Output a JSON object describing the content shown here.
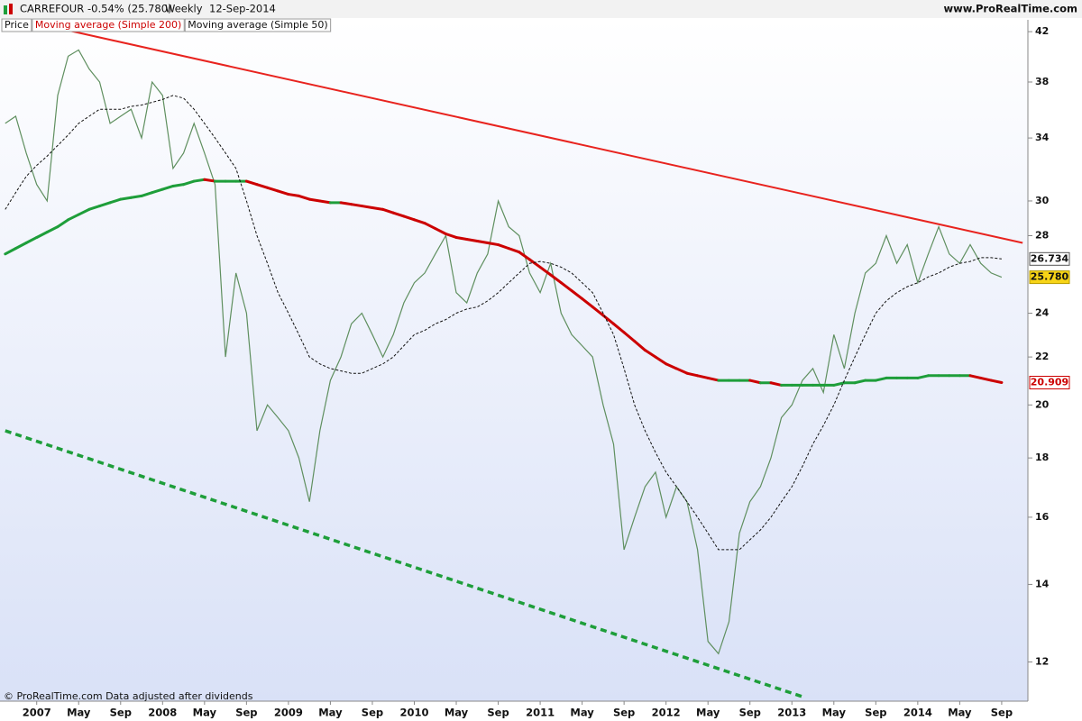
{
  "header": {
    "symbol": "CARREFOUR",
    "change": "-0.54% (25.780)",
    "period": "Weekly",
    "date": "12-Sep-2014",
    "site": "www.ProRealTime.com"
  },
  "note": "© ProRealTime.com Data adjusted after dividends",
  "chart_data": {
    "type": "line",
    "log_scale": true,
    "x": [
      "2006-10",
      "2006-11",
      "2006-12",
      "2007-01",
      "2007-02",
      "2007-03",
      "2007-04",
      "2007-05",
      "2007-06",
      "2007-07",
      "2007-08",
      "2007-09",
      "2007-10",
      "2007-11",
      "2007-12",
      "2008-01",
      "2008-02",
      "2008-03",
      "2008-04",
      "2008-05",
      "2008-06",
      "2008-07",
      "2008-08",
      "2008-09",
      "2008-10",
      "2008-11",
      "2008-12",
      "2009-01",
      "2009-02",
      "2009-03",
      "2009-04",
      "2009-05",
      "2009-06",
      "2009-07",
      "2009-08",
      "2009-09",
      "2009-10",
      "2009-11",
      "2009-12",
      "2010-01",
      "2010-02",
      "2010-03",
      "2010-04",
      "2010-05",
      "2010-06",
      "2010-07",
      "2010-08",
      "2010-09",
      "2010-10",
      "2010-11",
      "2010-12",
      "2011-01",
      "2011-02",
      "2011-03",
      "2011-04",
      "2011-05",
      "2011-06",
      "2011-07",
      "2011-08",
      "2011-09",
      "2011-10",
      "2011-11",
      "2011-12",
      "2012-01",
      "2012-02",
      "2012-03",
      "2012-04",
      "2012-05",
      "2012-06",
      "2012-07",
      "2012-08",
      "2012-09",
      "2012-10",
      "2012-11",
      "2012-12",
      "2013-01",
      "2013-02",
      "2013-03",
      "2013-04",
      "2013-05",
      "2013-06",
      "2013-07",
      "2013-08",
      "2013-09",
      "2013-10",
      "2013-11",
      "2013-12",
      "2014-01",
      "2014-02",
      "2014-03",
      "2014-04",
      "2014-05",
      "2014-06",
      "2014-07",
      "2014-08",
      "2014-09"
    ],
    "series": [
      {
        "name": "Price",
        "color": "#5f8f5f",
        "width": 1.2,
        "last_value_label": "25.780",
        "values": [
          35,
          35.5,
          33,
          31,
          30,
          37,
          40,
          40.5,
          39,
          38,
          35,
          35.5,
          36,
          34,
          38,
          37,
          32,
          33,
          35,
          33,
          31,
          22,
          26,
          24,
          19,
          20,
          19.5,
          19,
          18,
          16.5,
          19,
          21,
          22,
          23.5,
          24,
          23,
          22,
          23,
          24.5,
          25.5,
          26,
          27,
          28,
          25,
          24.5,
          26,
          27,
          30,
          28.5,
          28,
          26,
          25,
          26.5,
          24,
          23,
          22.5,
          22,
          20,
          18.5,
          15,
          16,
          17,
          17.5,
          16,
          17,
          16.5,
          15,
          12.5,
          12.2,
          13,
          15.5,
          16.5,
          17,
          18,
          19.5,
          20,
          21,
          21.5,
          20.5,
          23,
          21.5,
          24,
          26,
          26.5,
          28,
          26.5,
          27.5,
          25.5,
          27,
          28.5,
          27,
          26.5,
          27.5,
          26.5,
          26,
          25.78
        ]
      },
      {
        "name": "Moving average (Simple 200)",
        "color": "#cc0000",
        "rising_color": "#1e9e3a",
        "width": 3,
        "last_value_label": "20.909",
        "values": [
          27.0,
          27.3,
          27.6,
          27.9,
          28.2,
          28.5,
          28.9,
          29.2,
          29.5,
          29.7,
          29.9,
          30.1,
          30.2,
          30.3,
          30.5,
          30.7,
          30.9,
          31.0,
          31.2,
          31.3,
          31.2,
          31.2,
          31.2,
          31.2,
          31.0,
          30.8,
          30.6,
          30.4,
          30.3,
          30.1,
          30.0,
          29.9,
          29.9,
          29.8,
          29.7,
          29.6,
          29.5,
          29.3,
          29.1,
          28.9,
          28.7,
          28.4,
          28.1,
          27.9,
          27.8,
          27.7,
          27.6,
          27.5,
          27.3,
          27.1,
          26.7,
          26.3,
          25.9,
          25.5,
          25.1,
          24.7,
          24.3,
          23.9,
          23.5,
          23.1,
          22.7,
          22.3,
          22.0,
          21.7,
          21.5,
          21.3,
          21.2,
          21.1,
          21.0,
          21.0,
          21.0,
          21.0,
          20.9,
          20.9,
          20.8,
          20.8,
          20.8,
          20.8,
          20.8,
          20.8,
          20.9,
          20.9,
          21.0,
          21.0,
          21.1,
          21.1,
          21.1,
          21.1,
          21.2,
          21.2,
          21.2,
          21.2,
          21.2,
          21.1,
          21.0,
          20.909
        ]
      },
      {
        "name": "Moving average (Simple 50)",
        "color": "#111111",
        "width": 1,
        "dashed": true,
        "last_value_label": "26.734",
        "values": [
          29.5,
          30.5,
          31.5,
          32.2,
          32.8,
          33.5,
          34.2,
          35,
          35.5,
          36,
          36,
          36,
          36.2,
          36.3,
          36.5,
          36.7,
          37,
          36.8,
          36,
          35,
          34,
          33,
          32,
          30,
          28,
          26.5,
          25,
          24,
          23,
          22,
          21.7,
          21.5,
          21.4,
          21.3,
          21.3,
          21.5,
          21.7,
          22,
          22.5,
          23,
          23.2,
          23.5,
          23.7,
          24,
          24.2,
          24.3,
          24.6,
          25,
          25.5,
          26,
          26.5,
          26.6,
          26.5,
          26.3,
          26,
          25.5,
          25,
          24,
          23,
          21.5,
          20,
          19,
          18.2,
          17.5,
          17,
          16.5,
          16,
          15.5,
          15,
          15,
          15,
          15.3,
          15.6,
          16,
          16.5,
          17,
          17.7,
          18.5,
          19.2,
          20,
          21,
          22,
          23,
          24,
          24.6,
          25,
          25.3,
          25.5,
          25.8,
          26,
          26.3,
          26.5,
          26.6,
          26.8,
          26.8,
          26.734
        ]
      }
    ],
    "trendlines": [
      {
        "color": "#e8231e",
        "width": 2,
        "x": [
          "2007-03",
          "2014-11"
        ],
        "values": [
          42.3,
          27.6
        ]
      },
      {
        "color": "#1e9e3a",
        "width": 3.5,
        "dashed": true,
        "x": [
          "2006-10",
          "2013-02"
        ],
        "values": [
          19.0,
          11.2
        ]
      }
    ],
    "xlim": [
      "2006-10",
      "2014-11"
    ],
    "xticks": [
      {
        "value": "2007-01",
        "label": "2007"
      },
      {
        "value": "2007-05",
        "label": "May"
      },
      {
        "value": "2007-09",
        "label": "Sep"
      },
      {
        "value": "2008-01",
        "label": "2008"
      },
      {
        "value": "2008-05",
        "label": "May"
      },
      {
        "value": "2008-09",
        "label": "Sep"
      },
      {
        "value": "2009-01",
        "label": "2009"
      },
      {
        "value": "2009-05",
        "label": "May"
      },
      {
        "value": "2009-09",
        "label": "Sep"
      },
      {
        "value": "2010-01",
        "label": "2010"
      },
      {
        "value": "2010-05",
        "label": "May"
      },
      {
        "value": "2010-09",
        "label": "Sep"
      },
      {
        "value": "2011-01",
        "label": "2011"
      },
      {
        "value": "2011-05",
        "label": "May"
      },
      {
        "value": "2011-09",
        "label": "Sep"
      },
      {
        "value": "2012-01",
        "label": "2012"
      },
      {
        "value": "2012-05",
        "label": "May"
      },
      {
        "value": "2012-09",
        "label": "Sep"
      },
      {
        "value": "2013-01",
        "label": "2013"
      },
      {
        "value": "2013-05",
        "label": "May"
      },
      {
        "value": "2013-09",
        "label": "Sep"
      },
      {
        "value": "2014-01",
        "label": "2014"
      },
      {
        "value": "2014-05",
        "label": "May"
      },
      {
        "value": "2014-09",
        "label": "Sep"
      }
    ],
    "ylim": [
      11.1,
      43
    ],
    "yticks": [
      12,
      14,
      16,
      18,
      20,
      22,
      24,
      28,
      30,
      34,
      38,
      42
    ]
  }
}
